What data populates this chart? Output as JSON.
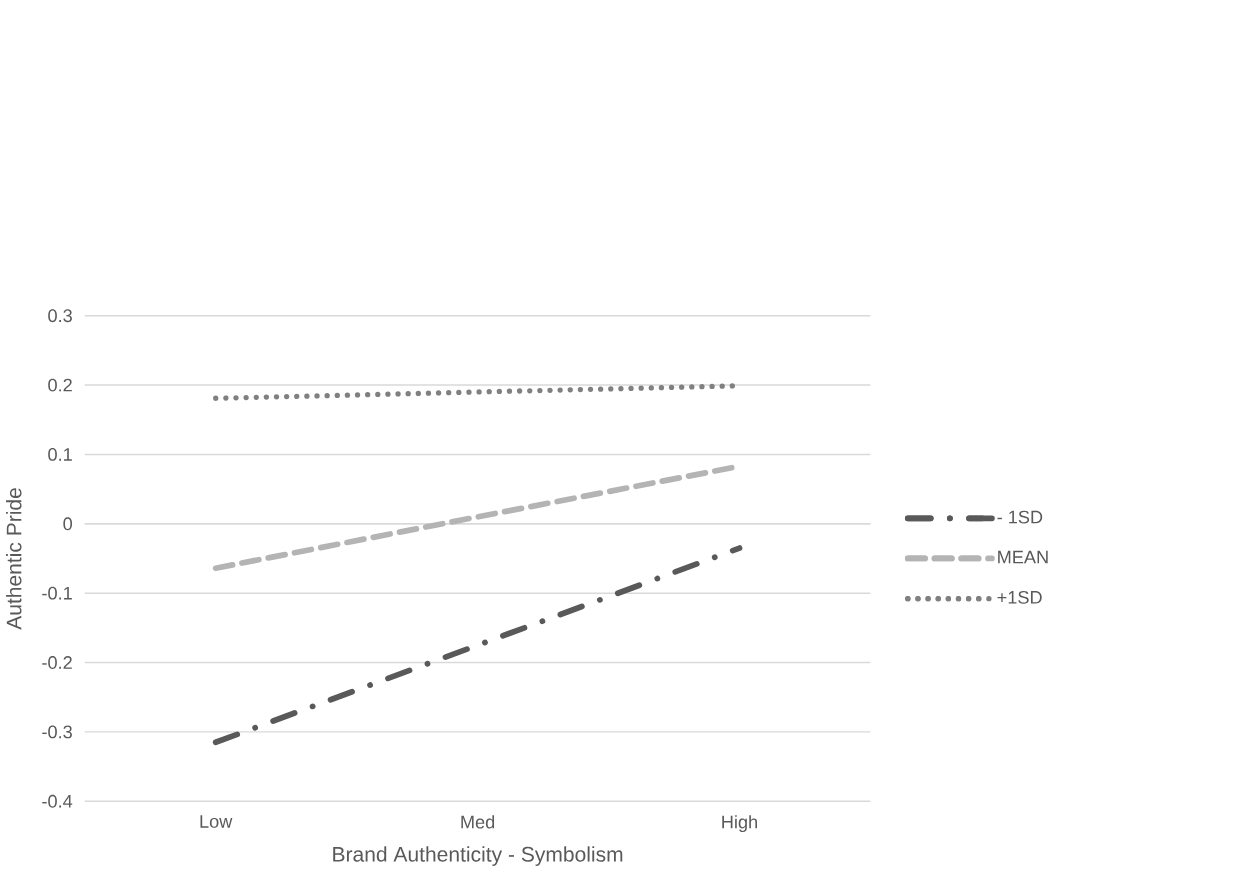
{
  "chart_data": {
    "type": "line",
    "xlabel": "Brand Authenticity - Symbolism",
    "ylabel": "Authentic Pride",
    "categories": [
      "Low",
      "Med",
      "High"
    ],
    "series": [
      {
        "name": "- 1SD",
        "color": "#595959",
        "line_style": "dashdot",
        "values": [
          -0.315,
          -0.175,
          -0.035
        ]
      },
      {
        "name": "MEAN",
        "color": "#b4b4b4",
        "line_style": "dashed",
        "values": [
          -0.064,
          0.01,
          0.083
        ]
      },
      {
        "name": "+1SD",
        "color": "#808080",
        "line_style": "dotted",
        "values": [
          0.181,
          0.19,
          0.199
        ]
      }
    ],
    "ylim": [
      -0.4,
      0.3
    ],
    "yticks": [
      -0.4,
      -0.3,
      -0.2,
      -0.1,
      0,
      0.1,
      0.2,
      0.3
    ],
    "grid": "y",
    "legend": "right",
    "marker": "none"
  }
}
